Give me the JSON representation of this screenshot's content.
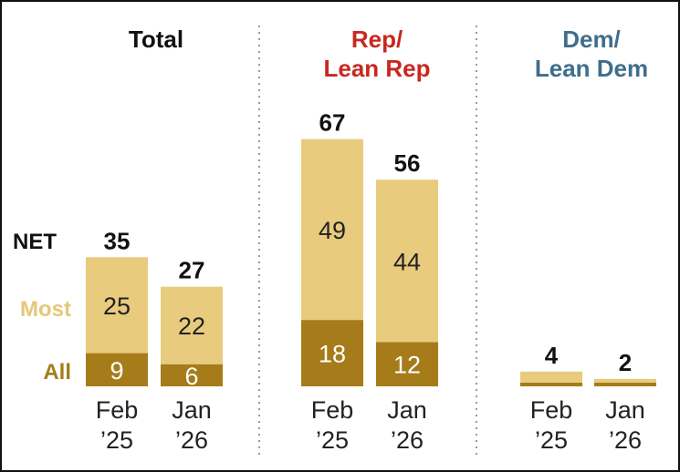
{
  "chart_data": {
    "type": "bar",
    "stacked": true,
    "legend": [
      {
        "name": "NET",
        "color": "#111111"
      },
      {
        "name": "Most",
        "color": "#E6C77A"
      },
      {
        "name": "All",
        "color": "#A67C1A"
      }
    ],
    "colors": {
      "all": "#A67C1A",
      "most": "#E9CB7E",
      "divider": "#9a9a9a"
    },
    "panels": [
      {
        "title_lines": [
          "Total"
        ],
        "title_color": "#111111",
        "bars": [
          {
            "label_lines": [
              "Feb",
              "’25"
            ],
            "all": 9,
            "most": 25,
            "net": 35,
            "show_inner": true
          },
          {
            "label_lines": [
              "Jan",
              "’26"
            ],
            "all": 6,
            "most": 22,
            "net": 27,
            "show_inner": true
          }
        ]
      },
      {
        "title_lines": [
          "Rep/",
          "Lean Rep"
        ],
        "title_color": "#C8281E",
        "bars": [
          {
            "label_lines": [
              "Feb",
              "’25"
            ],
            "all": 18,
            "most": 49,
            "net": 67,
            "show_inner": true
          },
          {
            "label_lines": [
              "Jan",
              "’26"
            ],
            "all": 12,
            "most": 44,
            "net": 56,
            "show_inner": true
          }
        ]
      },
      {
        "title_lines": [
          "Dem/",
          "Lean Dem"
        ],
        "title_color": "#3F6E8C",
        "bars": [
          {
            "label_lines": [
              "Feb",
              "’25"
            ],
            "all": 1,
            "most": 3,
            "net": 4,
            "show_inner": false
          },
          {
            "label_lines": [
              "Jan",
              "’26"
            ],
            "all": 1,
            "most": 1,
            "net": 2,
            "show_inner": false
          }
        ]
      }
    ]
  }
}
